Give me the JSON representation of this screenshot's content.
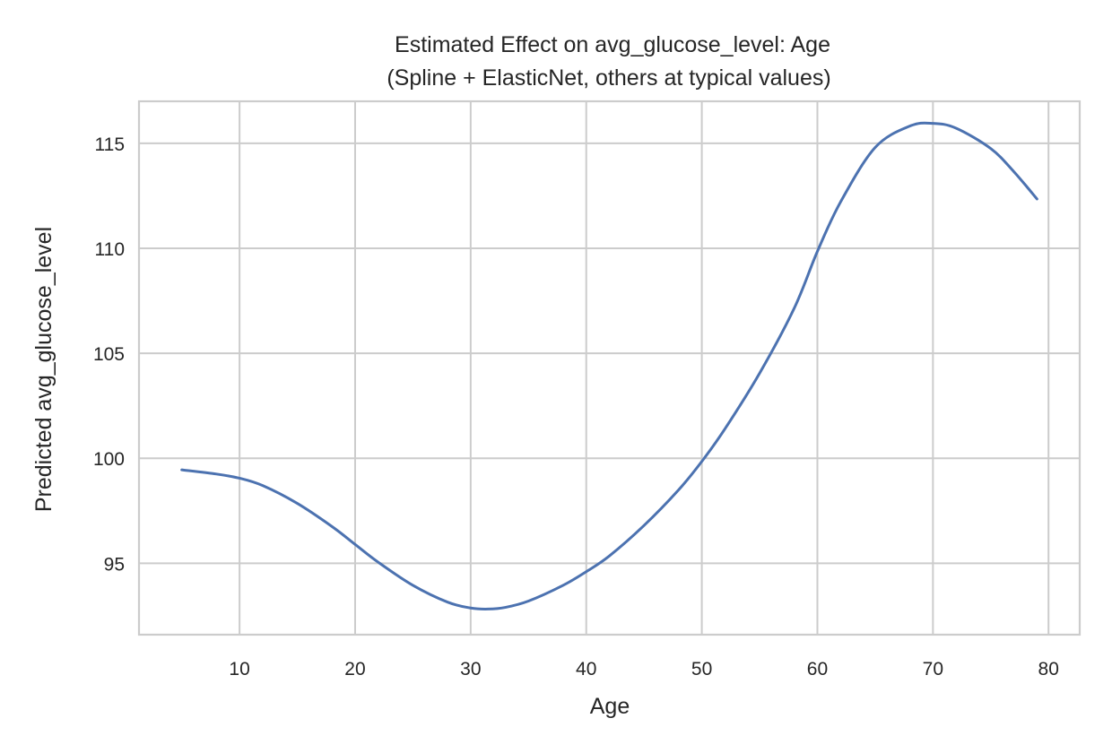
{
  "chart_data": {
    "type": "line",
    "title": "Estimated Effect on avg_glucose_level: Age",
    "subtitle": "(Spline + ElasticNet, others at typical values)",
    "xlabel": "Age",
    "ylabel": "Predicted avg_glucose_level",
    "xlim": [
      1.3,
      82.7
    ],
    "ylim": [
      91.6,
      117.0
    ],
    "xticks": [
      10,
      20,
      30,
      40,
      50,
      60,
      70,
      80
    ],
    "yticks": [
      95,
      100,
      105,
      110,
      115
    ],
    "grid": true,
    "legend": "none",
    "series": [
      {
        "color": "#4c72b0",
        "x": [
          5,
          8,
          10,
          12,
          15,
          18,
          20,
          22,
          25,
          28,
          30,
          31.5,
          33,
          35,
          38,
          40,
          42,
          45,
          48,
          50,
          52,
          55,
          58,
          60,
          62,
          65,
          68,
          70,
          72,
          75,
          77,
          79
        ],
        "y": [
          99.45,
          99.25,
          99.05,
          98.7,
          97.85,
          96.75,
          95.9,
          95.05,
          93.95,
          93.15,
          92.87,
          92.82,
          92.9,
          93.2,
          93.95,
          94.6,
          95.35,
          96.8,
          98.5,
          99.85,
          101.4,
          104.05,
          107.15,
          109.85,
          112.2,
          114.8,
          115.82,
          115.95,
          115.72,
          114.75,
          113.65,
          112.35
        ]
      }
    ]
  }
}
